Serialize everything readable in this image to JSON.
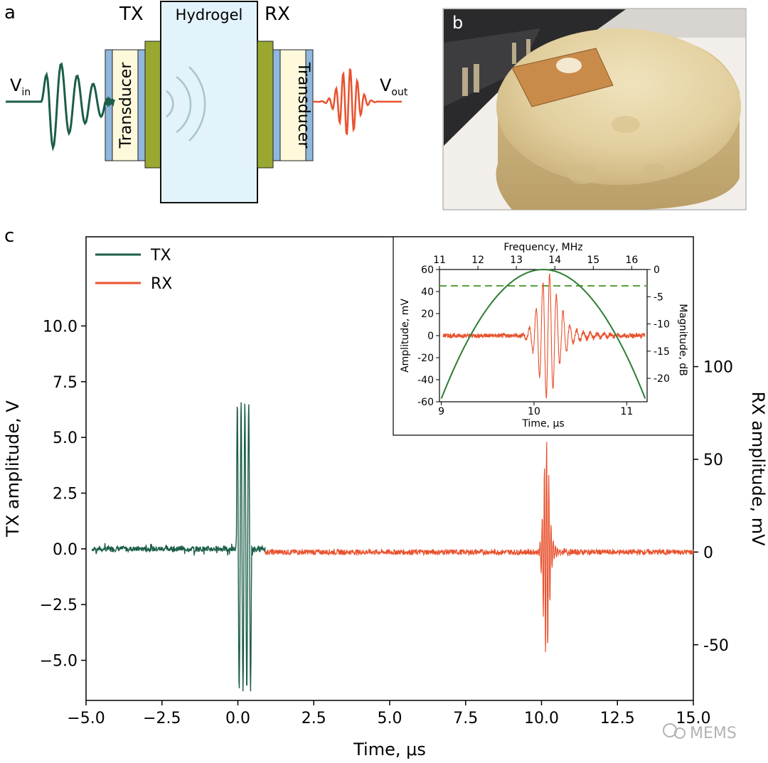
{
  "panel_labels": {
    "a": "a",
    "b": "b",
    "c": "c"
  },
  "schematic": {
    "tx_label": "TX",
    "rx_label": "RX",
    "hydrogel_label": "Hydrogel",
    "left_transducer": "Transducer",
    "right_transducer": "Transducer",
    "vin_main": "V",
    "vin_sub": "in",
    "vout_main": "V",
    "vout_sub": "out"
  },
  "photo": {
    "description_hidden": true
  },
  "colors": {
    "tx": "#1b5e4a",
    "rx": "#e8522e",
    "inset_curve": "#2e7d32",
    "transducer_fill": "#fff9dc",
    "transducer_edge": "#8fb8dc",
    "electrode": "#9aa832",
    "hydrogel_fill": "#e3f3fb",
    "wave_arcs": "#a8c4cc"
  },
  "chart_data": [
    {
      "type": "line",
      "title": "",
      "xlabel": "Time, μs",
      "ylabel_left": "TX amplitude, V",
      "ylabel_right": "RX amplitude, mV",
      "xlim": [
        -5.0,
        15.0
      ],
      "ylim_left": [
        -6.8,
        14.0
      ],
      "ylim_right": [
        -80,
        170
      ],
      "x_ticks": [
        "−5.0",
        "−2.5",
        "0.0",
        "2.5",
        "5.0",
        "7.5",
        "10.0",
        "12.5",
        "15.0"
      ],
      "x_tick_values": [
        -5.0,
        -2.5,
        0.0,
        2.5,
        5.0,
        7.5,
        10.0,
        12.5,
        15.0
      ],
      "y_left_ticks": [
        "10.0",
        "7.5",
        "5.0",
        "2.5",
        "0.0",
        "−2.5",
        "−5.0"
      ],
      "y_left_tick_values": [
        10.0,
        7.5,
        5.0,
        2.5,
        0.0,
        -2.5,
        -5.0
      ],
      "y_right_ticks": [
        "100",
        "50",
        "0",
        "-50"
      ],
      "y_right_tick_values": [
        100,
        50,
        0,
        -50
      ],
      "legend": [
        "TX",
        "RX"
      ],
      "legend_position": "top-left",
      "series": [
        {
          "name": "TX",
          "axis": "left",
          "x_range": [
            -4.8,
            0.9
          ],
          "burst_center": 0.2,
          "burst_peak": 6.6,
          "burst_trough": -6.4,
          "burst_cycles": 4
        },
        {
          "name": "RX",
          "axis": "right",
          "x_range": [
            0.9,
            15.0
          ],
          "burst_center": 10.15,
          "burst_peak": 56,
          "burst_trough": -57,
          "noise_mv": 1.5
        }
      ]
    },
    {
      "type": "line",
      "title": "",
      "xlabel": "Time, μs",
      "xlabel_top": "Frequency, MHz",
      "ylabel_left": "Amplitude, mV",
      "ylabel_right": "Magnitude, dB",
      "xlim": [
        8.98,
        11.22
      ],
      "xlim_top": [
        11.0,
        16.4
      ],
      "ylim_left": [
        -60,
        60
      ],
      "ylim_right": [
        -24.3,
        0
      ],
      "x_ticks": [
        "9",
        "10",
        "11"
      ],
      "x_tick_values": [
        9,
        10,
        11
      ],
      "x_top_ticks": [
        "11",
        "12",
        "13",
        "14",
        "15",
        "16"
      ],
      "x_top_tick_values": [
        11,
        12,
        13,
        14,
        15,
        16
      ],
      "y_left_ticks": [
        "60",
        "40",
        "20",
        "0",
        "-20",
        "-40",
        "-60"
      ],
      "y_left_tick_values": [
        60,
        40,
        20,
        0,
        -20,
        -40,
        -60
      ],
      "y_right_ticks": [
        "0",
        "-5",
        "-10",
        "-15",
        "-20"
      ],
      "y_right_tick_values": [
        0,
        -5,
        -10,
        -15,
        -20
      ],
      "reference_line_db": -3,
      "series": [
        {
          "name": "RX burst",
          "axis": "left",
          "x_range": [
            9.02,
            11.2
          ],
          "center": 10.15,
          "peak": 56
        },
        {
          "name": "Spectrum",
          "axis": "right_top",
          "center_mhz": 13.7,
          "half_span_mhz": 2.65,
          "min_db": -23.7
        }
      ]
    }
  ],
  "watermark": "MEMS"
}
